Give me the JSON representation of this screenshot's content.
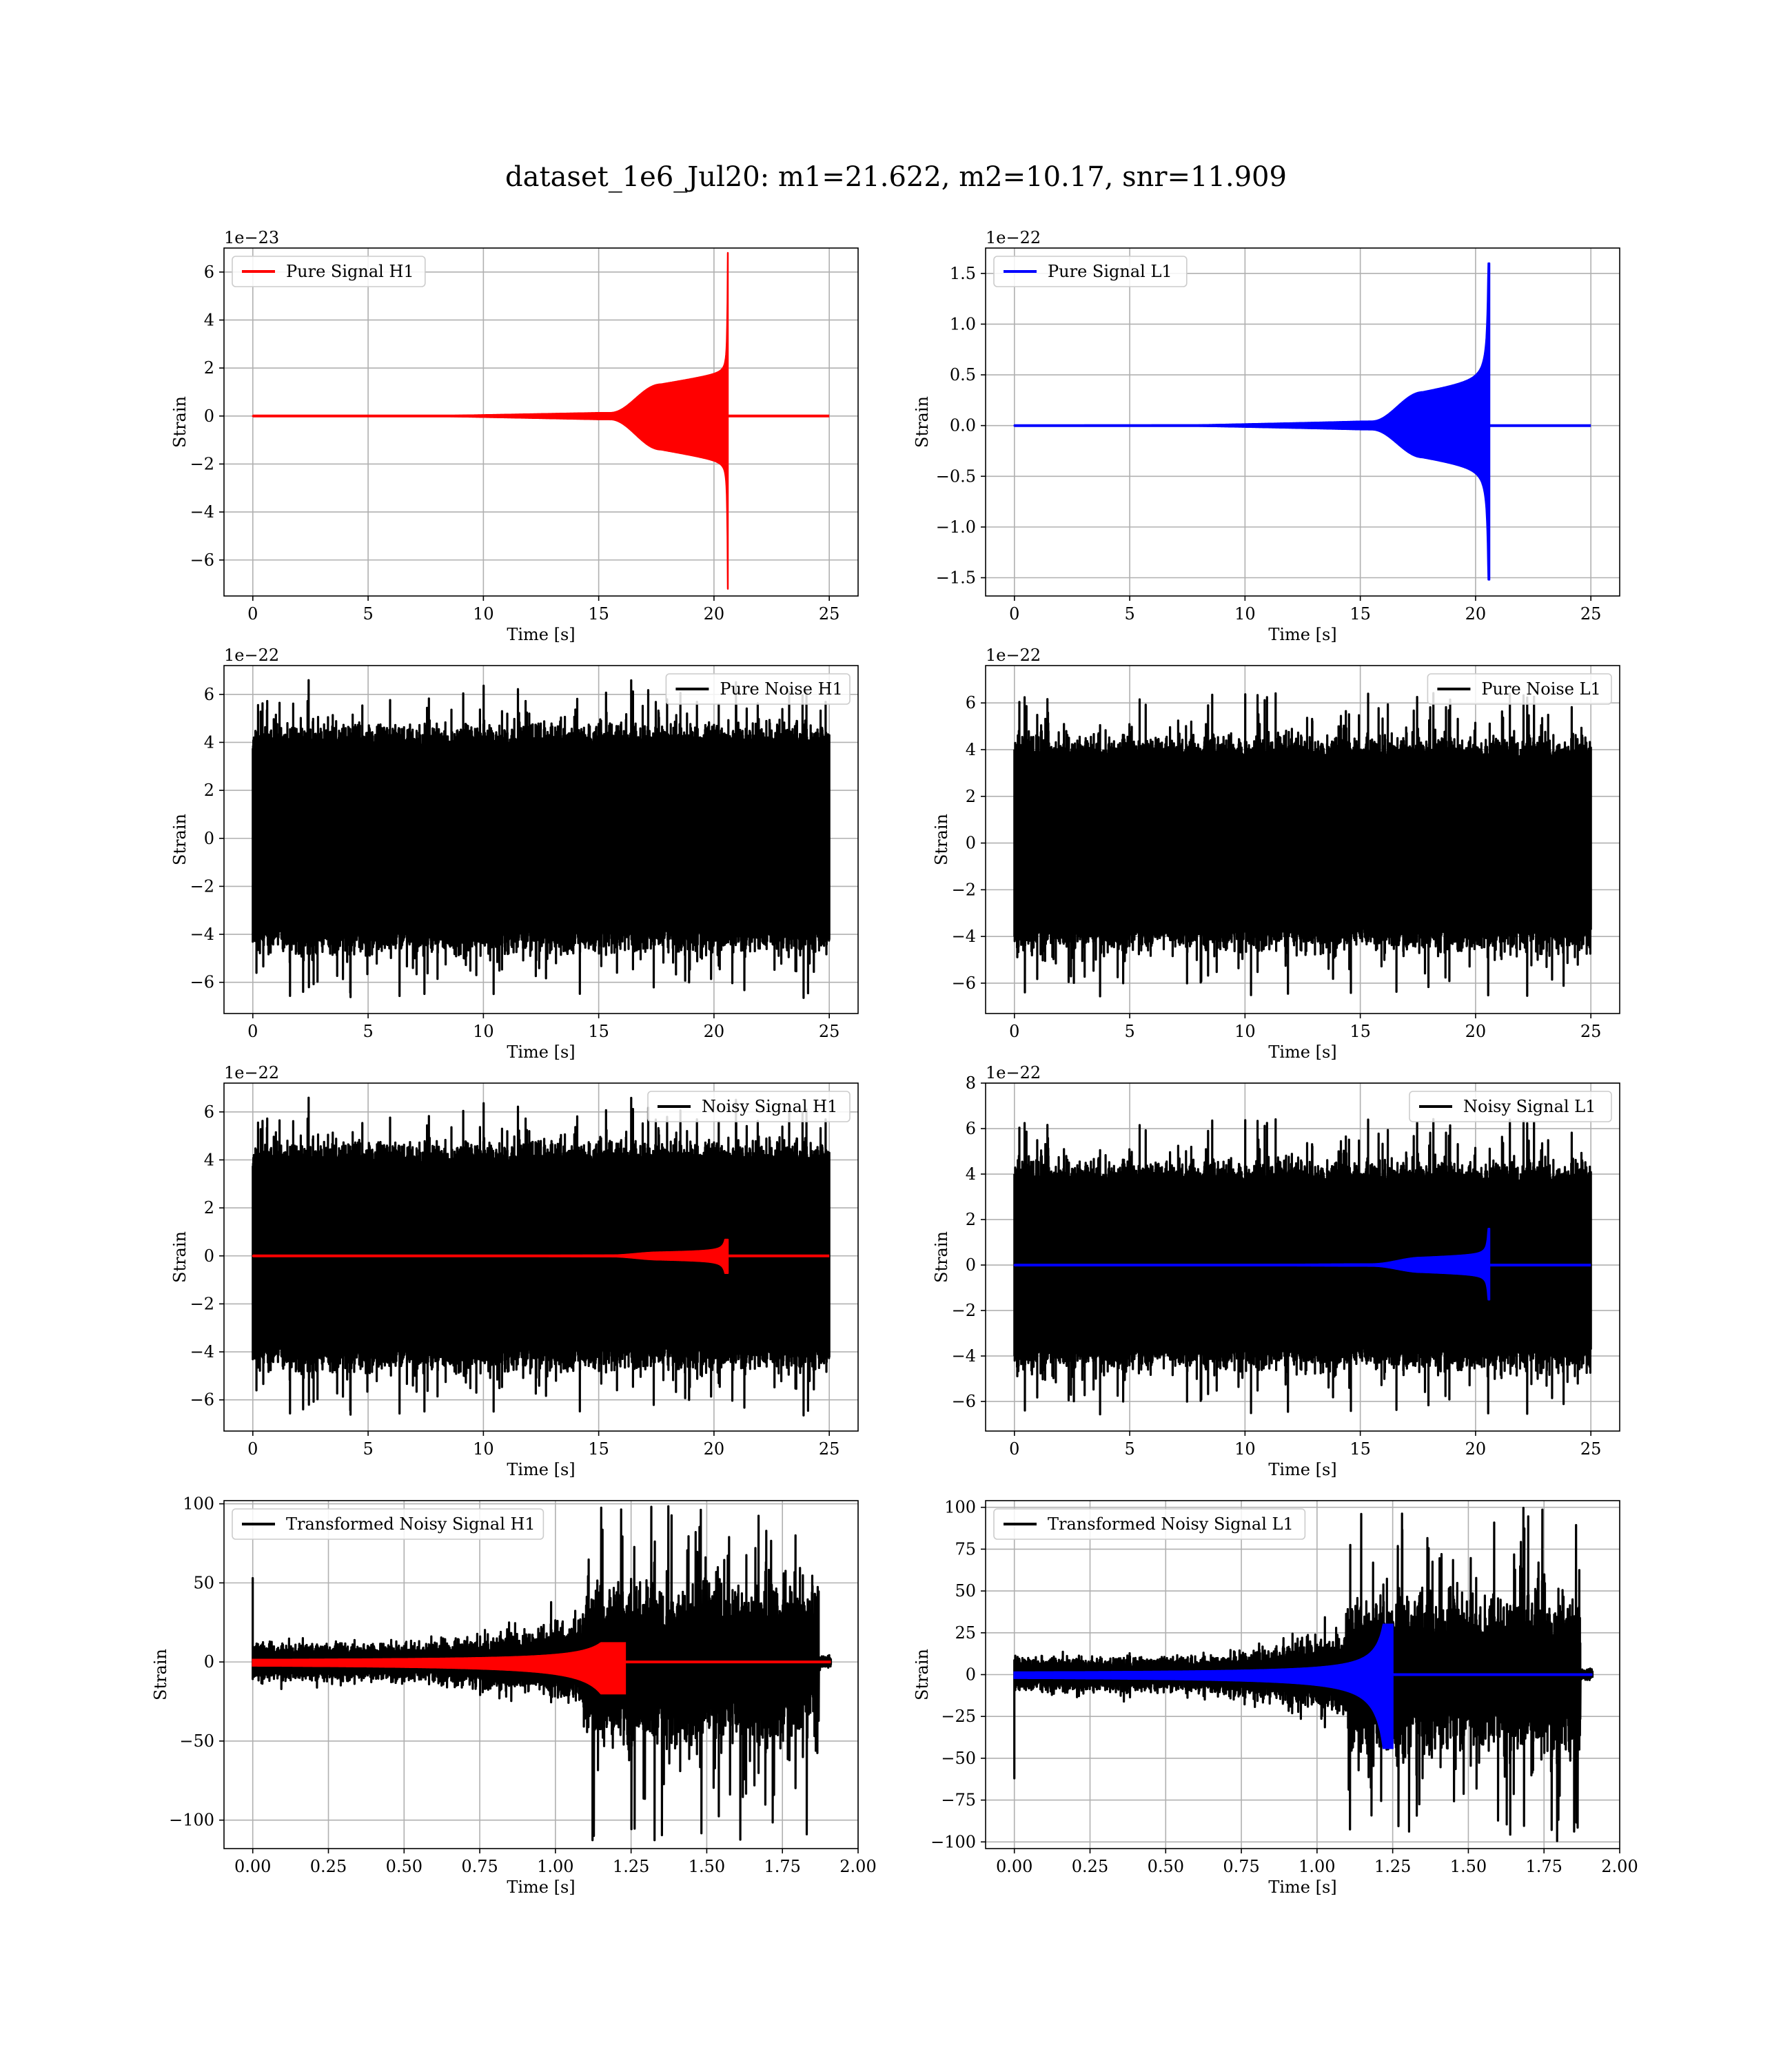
{
  "figure": {
    "title": "dataset_1e6_Jul20: m1=21.622, m2=10.17, snr=11.909",
    "colors": {
      "h1_signal": "#ff0000",
      "l1_signal": "#0000ff",
      "noise": "#000000",
      "grid": "#b0b0b0"
    }
  },
  "chart_data": [
    {
      "type": "line",
      "id": "pure-signal-h1",
      "xlabel": "Time [s]",
      "ylabel": "Strain",
      "offset_text": "1e−23",
      "xlim": [
        -1.25,
        26.25
      ],
      "ylim": [
        -7.5,
        7.0
      ],
      "xticks": [
        0,
        5,
        10,
        15,
        20,
        25
      ],
      "xtick_labels": [
        "0",
        "5",
        "10",
        "15",
        "20",
        "25"
      ],
      "yticks": [
        -6,
        -4,
        -2,
        0,
        2,
        4,
        6
      ],
      "ytick_labels": [
        "−6",
        "−4",
        "−2",
        "0",
        "2",
        "4",
        "6"
      ],
      "legend_position": "upper-left",
      "series": [
        {
          "name": "Pure Signal H1",
          "kind": "chirp",
          "color": "#ff0000",
          "legend": true,
          "x_range": [
            0,
            25
          ],
          "merger_time": 20.6,
          "rise_time": 15.5,
          "plateau_amp": 1.3,
          "peak_pos": 6.8,
          "peak_neg": -7.2,
          "early_amp": 0.12
        }
      ]
    },
    {
      "type": "line",
      "id": "pure-signal-l1",
      "xlabel": "Time [s]",
      "ylabel": "Strain",
      "offset_text": "1e−22",
      "xlim": [
        -1.25,
        26.25
      ],
      "ylim": [
        -1.68,
        1.75
      ],
      "xticks": [
        0,
        5,
        10,
        15,
        20,
        25
      ],
      "xtick_labels": [
        "0",
        "5",
        "10",
        "15",
        "20",
        "25"
      ],
      "yticks": [
        -1.5,
        -1.0,
        -0.5,
        0.0,
        0.5,
        1.0,
        1.5
      ],
      "ytick_labels": [
        "−1.5",
        "−1.0",
        "−0.5",
        "0.0",
        "0.5",
        "1.0",
        "1.5"
      ],
      "legend_position": "upper-left",
      "series": [
        {
          "name": "Pure Signal L1",
          "kind": "chirp",
          "color": "#0000ff",
          "legend": true,
          "x_range": [
            0,
            25
          ],
          "merger_time": 20.6,
          "rise_time": 15.5,
          "plateau_amp": 0.31,
          "peak_pos": 1.6,
          "peak_neg": -1.52,
          "early_amp": 0.03
        }
      ]
    },
    {
      "type": "line",
      "id": "pure-noise-h1",
      "xlabel": "Time [s]",
      "ylabel": "Strain",
      "offset_text": "1e−22",
      "xlim": [
        -1.25,
        26.25
      ],
      "ylim": [
        -7.3,
        7.2
      ],
      "xticks": [
        0,
        5,
        10,
        15,
        20,
        25
      ],
      "xtick_labels": [
        "0",
        "5",
        "10",
        "15",
        "20",
        "25"
      ],
      "yticks": [
        -6,
        -4,
        -2,
        0,
        2,
        4,
        6
      ],
      "ytick_labels": [
        "−6",
        "−4",
        "−2",
        "0",
        "2",
        "4",
        "6"
      ],
      "legend_position": "upper-right",
      "series": [
        {
          "name": "Pure Noise H1",
          "kind": "noise",
          "color": "#000000",
          "legend": true,
          "x_range": [
            0,
            25
          ],
          "band": 3.6,
          "max": 6.6,
          "min": -6.7,
          "seed": 11
        }
      ]
    },
    {
      "type": "line",
      "id": "pure-noise-l1",
      "xlabel": "Time [s]",
      "ylabel": "Strain",
      "offset_text": "1e−22",
      "xlim": [
        -1.25,
        26.25
      ],
      "ylim": [
        -7.3,
        7.6
      ],
      "xticks": [
        0,
        5,
        10,
        15,
        20,
        25
      ],
      "xtick_labels": [
        "0",
        "5",
        "10",
        "15",
        "20",
        "25"
      ],
      "yticks": [
        -6,
        -4,
        -2,
        0,
        2,
        4,
        6
      ],
      "ytick_labels": [
        "−6",
        "−4",
        "−2",
        "0",
        "2",
        "4",
        "6"
      ],
      "legend_position": "upper-right",
      "series": [
        {
          "name": "Pure Noise L1",
          "kind": "noise",
          "color": "#000000",
          "legend": true,
          "x_range": [
            0,
            25
          ],
          "band": 3.4,
          "max": 6.5,
          "min": -6.6,
          "seed": 23
        }
      ]
    },
    {
      "type": "line",
      "id": "noisy-signal-h1",
      "xlabel": "Time [s]",
      "ylabel": "Strain",
      "offset_text": "1e−22",
      "xlim": [
        -1.25,
        26.25
      ],
      "ylim": [
        -7.3,
        7.2
      ],
      "xticks": [
        0,
        5,
        10,
        15,
        20,
        25
      ],
      "xtick_labels": [
        "0",
        "5",
        "10",
        "15",
        "20",
        "25"
      ],
      "yticks": [
        -6,
        -4,
        -2,
        0,
        2,
        4,
        6
      ],
      "ytick_labels": [
        "−6",
        "−4",
        "−2",
        "0",
        "2",
        "4",
        "6"
      ],
      "legend_position": "upper-right",
      "series": [
        {
          "name": "Noisy Signal H1",
          "kind": "noise",
          "color": "#000000",
          "legend": true,
          "x_range": [
            0,
            25
          ],
          "band": 3.6,
          "max": 6.6,
          "min": -6.7,
          "seed": 11
        },
        {
          "name": "",
          "kind": "chirp",
          "color": "#ff0000",
          "legend": false,
          "x_range": [
            0,
            25
          ],
          "merger_time": 20.6,
          "rise_time": 15.5,
          "plateau_amp": 0.13,
          "peak_pos": 0.68,
          "peak_neg": -0.72,
          "early_amp": 0.012
        }
      ]
    },
    {
      "type": "line",
      "id": "noisy-signal-l1",
      "xlabel": "Time [s]",
      "ylabel": "Strain",
      "offset_text": "1e−22",
      "xlim": [
        -1.25,
        26.25
      ],
      "ylim": [
        -7.3,
        8.0
      ],
      "xticks": [
        0,
        5,
        10,
        15,
        20,
        25
      ],
      "xtick_labels": [
        "0",
        "5",
        "10",
        "15",
        "20",
        "25"
      ],
      "yticks": [
        -6,
        -4,
        -2,
        0,
        2,
        4,
        6,
        8
      ],
      "ytick_labels": [
        "−6",
        "−4",
        "−2",
        "0",
        "2",
        "4",
        "6",
        "8"
      ],
      "legend_position": "upper-right",
      "series": [
        {
          "name": "Noisy Signal L1",
          "kind": "noise",
          "color": "#000000",
          "legend": true,
          "x_range": [
            0,
            25
          ],
          "band": 3.4,
          "max": 6.5,
          "min": -6.6,
          "seed": 23
        },
        {
          "name": "",
          "kind": "chirp",
          "color": "#0000ff",
          "legend": false,
          "x_range": [
            0,
            25
          ],
          "merger_time": 20.6,
          "rise_time": 15.5,
          "plateau_amp": 0.31,
          "peak_pos": 1.6,
          "peak_neg": -1.52,
          "early_amp": 0.03
        }
      ]
    },
    {
      "type": "line",
      "id": "transformed-noisy-signal-h1",
      "xlabel": "Time [s]",
      "ylabel": "Strain",
      "offset_text": "",
      "xlim": [
        -0.095,
        2.0
      ],
      "ylim": [
        -118,
        102
      ],
      "xticks": [
        0,
        0.25,
        0.5,
        0.75,
        1.0,
        1.25,
        1.5,
        1.75,
        2.0
      ],
      "xtick_labels": [
        "0.00",
        "0.25",
        "0.50",
        "0.75",
        "1.00",
        "1.25",
        "1.50",
        "1.75",
        "2.00"
      ],
      "yticks": [
        -100,
        -50,
        0,
        50,
        100
      ],
      "ytick_labels": [
        "−100",
        "−50",
        "0",
        "50",
        "100"
      ],
      "legend_position": "upper-left",
      "series": [
        {
          "name": "Transformed Noisy Signal H1",
          "kind": "transformed-noise",
          "color": "#000000",
          "legend": true,
          "x_range": [
            0,
            1.91
          ],
          "spike": 53,
          "seed": 37,
          "pre_amp": 7,
          "burst_start": 1.1,
          "burst_end": 1.87,
          "burst_amp": 55,
          "max": 100,
          "min": -113
        },
        {
          "name": "",
          "kind": "transformed-chirp",
          "color": "#ff0000",
          "legend": false,
          "x_range": [
            0,
            1.91
          ],
          "merger_time": 1.23,
          "peak_pos": 12,
          "peak_neg": -20
        }
      ]
    },
    {
      "type": "line",
      "id": "transformed-noisy-signal-l1",
      "xlabel": "Time [s]",
      "ylabel": "Strain",
      "offset_text": "",
      "xlim": [
        -0.095,
        2.0
      ],
      "ylim": [
        -104,
        104
      ],
      "xticks": [
        0,
        0.25,
        0.5,
        0.75,
        1.0,
        1.25,
        1.5,
        1.75,
        2.0
      ],
      "xtick_labels": [
        "0.00",
        "0.25",
        "0.50",
        "0.75",
        "1.00",
        "1.25",
        "1.50",
        "1.75",
        "2.00"
      ],
      "yticks": [
        -100,
        -75,
        -50,
        -25,
        0,
        25,
        50,
        75,
        100
      ],
      "ytick_labels": [
        "−100",
        "−75",
        "−50",
        "−25",
        "0",
        "25",
        "50",
        "75",
        "100"
      ],
      "legend_position": "upper-left",
      "series": [
        {
          "name": "Transformed Noisy Signal L1",
          "kind": "transformed-noise",
          "color": "#000000",
          "legend": true,
          "x_range": [
            0,
            1.91
          ],
          "spike": -62,
          "seed": 41,
          "pre_amp": 6,
          "burst_start": 1.1,
          "burst_end": 1.87,
          "burst_amp": 50,
          "max": 100,
          "min": -100
        },
        {
          "name": "",
          "kind": "transformed-chirp",
          "color": "#0000ff",
          "legend": false,
          "x_range": [
            0,
            1.91
          ],
          "merger_time": 1.25,
          "peak_pos": 30,
          "peak_neg": -44
        }
      ]
    }
  ]
}
